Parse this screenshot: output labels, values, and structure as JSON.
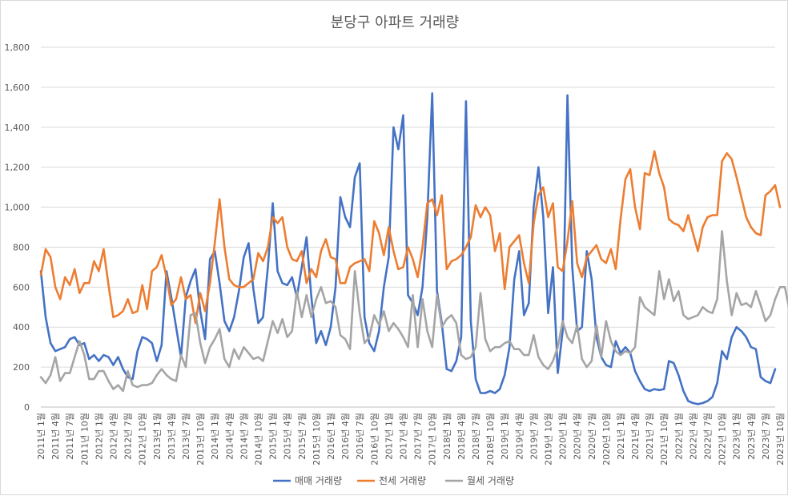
{
  "chart_data": {
    "type": "line",
    "title": "분당구 아파트 거래량",
    "ylim": [
      0,
      1800
    ],
    "y_ticks": [
      "0",
      "200",
      "400",
      "600",
      "800",
      "1,000",
      "1,200",
      "1,400",
      "1,600",
      "1,800"
    ],
    "grid": true,
    "legend_position": "bottom",
    "x_tick_labels": [
      "2011년 1월",
      "2011년 4월",
      "2011년 7월",
      "2011년 10월",
      "2012년 1월",
      "2012년 4월",
      "2012년 7월",
      "2012년 10월",
      "2013년 1월",
      "2013년 4월",
      "2013년 7월",
      "2013년 10월",
      "2014년 1월",
      "2014년 4월",
      "2014년 7월",
      "2014년 10월",
      "2015년 1월",
      "2015년 4월",
      "2015년 7월",
      "2015년 10월",
      "2016년 1월",
      "2016년 4월",
      "2016년 7월",
      "2016년 10월",
      "2017년 1월",
      "2017년 4월",
      "2017년 7월",
      "2017년 10월",
      "2018년 1월",
      "2018년 4월",
      "2018년 7월",
      "2018년 10월",
      "2019년 1월",
      "2019년 4월",
      "2019년 7월",
      "2019년 10월",
      "2020년 1월",
      "2020년 4월",
      "2020년 7월",
      "2020년 10월",
      "2021년 1월",
      "2021년 4월",
      "2021년 7월",
      "2021년 10월",
      "2022년 1월",
      "2022년 4월",
      "2022년 7월",
      "2022년 10월",
      "2023년 1월",
      "2023년 4월",
      "2023년 7월",
      "2023년 10월",
      "2024년 1월"
    ],
    "series": [
      {
        "name": "매매 거래량",
        "color": "#4472C4",
        "values": [
          680,
          450,
          320,
          280,
          290,
          300,
          340,
          350,
          310,
          320,
          240,
          260,
          230,
          260,
          250,
          210,
          250,
          190,
          150,
          140,
          280,
          350,
          340,
          320,
          230,
          310,
          680,
          550,
          400,
          250,
          550,
          630,
          690,
          480,
          340,
          740,
          780,
          620,
          430,
          380,
          450,
          580,
          750,
          820,
          590,
          420,
          450,
          700,
          1020,
          680,
          620,
          610,
          650,
          550,
          700,
          850,
          550,
          320,
          380,
          310,
          400,
          600,
          1050,
          950,
          900,
          1150,
          1220,
          450,
          320,
          280,
          380,
          600,
          750,
          1400,
          1290,
          1460,
          560,
          520,
          460,
          600,
          950,
          1570,
          580,
          420,
          190,
          180,
          230,
          350,
          1530,
          430,
          140,
          70,
          70,
          80,
          70,
          90,
          160,
          300,
          640,
          780,
          460,
          520,
          1000,
          1200,
          950,
          470,
          700,
          170,
          380,
          1560,
          700,
          380,
          400,
          780,
          640,
          350,
          250,
          210,
          200,
          330,
          270,
          300,
          270,
          180,
          130,
          90,
          80,
          90,
          85,
          90,
          230,
          220,
          160,
          80,
          30,
          20,
          15,
          20,
          30,
          50,
          120,
          280,
          240,
          350,
          400,
          380,
          350,
          300,
          290,
          150,
          130,
          120,
          190
        ]
      },
      {
        "name": "전세 거래량",
        "color": "#ED7D31",
        "values": [
          660,
          790,
          750,
          600,
          540,
          650,
          610,
          690,
          570,
          620,
          620,
          730,
          680,
          790,
          610,
          450,
          460,
          480,
          540,
          470,
          480,
          610,
          490,
          680,
          700,
          760,
          650,
          510,
          540,
          650,
          540,
          560,
          420,
          570,
          480,
          620,
          820,
          1040,
          800,
          640,
          610,
          600,
          600,
          620,
          640,
          770,
          730,
          800,
          950,
          920,
          950,
          800,
          740,
          730,
          780,
          620,
          690,
          650,
          780,
          840,
          750,
          740,
          620,
          620,
          700,
          720,
          730,
          740,
          680,
          930,
          870,
          760,
          900,
          780,
          690,
          700,
          800,
          740,
          650,
          800,
          1020,
          1040,
          960,
          1060,
          690,
          730,
          740,
          760,
          800,
          850,
          1010,
          950,
          1000,
          960,
          780,
          870,
          590,
          800,
          830,
          860,
          720,
          620,
          920,
          1060,
          1100,
          950,
          1020,
          700,
          680,
          830,
          1030,
          720,
          650,
          750,
          780,
          810,
          740,
          720,
          790,
          690,
          940,
          1140,
          1190,
          1000,
          890,
          1170,
          1160,
          1280,
          1170,
          1100,
          940,
          920,
          910,
          880,
          960,
          870,
          780,
          900,
          950,
          960,
          960,
          1230,
          1270,
          1240,
          1150,
          1050,
          950,
          900,
          870,
          860,
          1060,
          1080,
          1110,
          1000
        ]
      },
      {
        "name": "월세 거래량",
        "color": "#A5A5A5",
        "values": [
          150,
          120,
          160,
          250,
          130,
          170,
          170,
          250,
          330,
          260,
          140,
          140,
          180,
          180,
          130,
          90,
          110,
          80,
          180,
          110,
          100,
          110,
          110,
          120,
          160,
          190,
          160,
          140,
          130,
          260,
          200,
          460,
          470,
          320,
          220,
          300,
          340,
          390,
          240,
          200,
          290,
          240,
          300,
          270,
          240,
          250,
          230,
          330,
          430,
          370,
          440,
          350,
          380,
          580,
          450,
          560,
          450,
          540,
          600,
          520,
          530,
          500,
          360,
          340,
          290,
          680,
          470,
          320,
          350,
          460,
          410,
          480,
          380,
          420,
          390,
          350,
          300,
          560,
          300,
          540,
          380,
          300,
          560,
          400,
          440,
          460,
          420,
          260,
          240,
          250,
          300,
          570,
          340,
          280,
          300,
          300,
          320,
          330,
          290,
          290,
          260,
          260,
          360,
          250,
          210,
          190,
          230,
          300,
          430,
          350,
          320,
          410,
          240,
          200,
          230,
          410,
          250,
          430,
          330,
          280,
          260,
          280,
          270,
          300,
          550,
          500,
          480,
          460,
          680,
          540,
          640,
          530,
          580,
          460,
          440,
          450,
          460,
          500,
          480,
          470,
          540,
          880,
          630,
          460,
          570,
          510,
          520,
          500,
          580,
          510,
          430,
          460,
          540,
          600,
          600,
          480
        ]
      }
    ]
  }
}
